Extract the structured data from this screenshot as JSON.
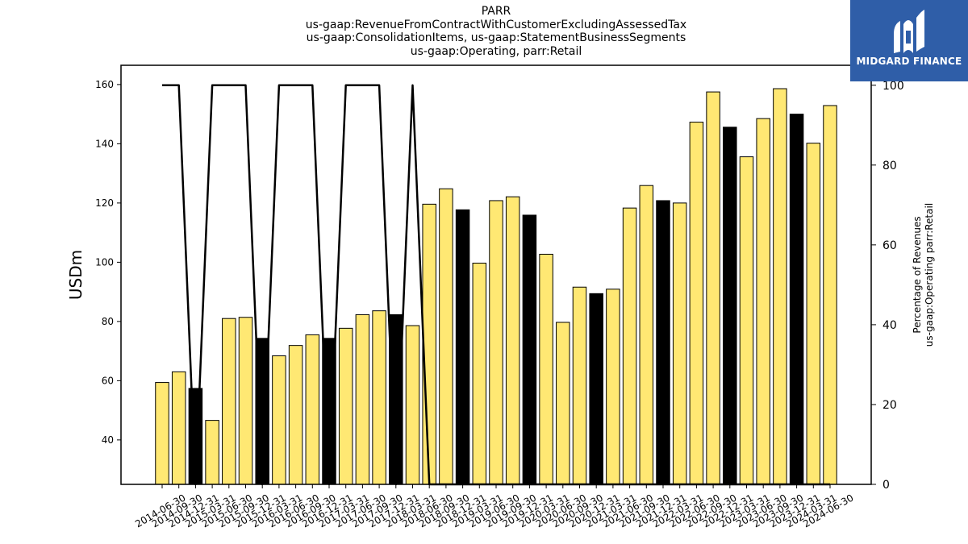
{
  "header": {
    "title_lines": [
      "PARR",
      "us-gaap:RevenueFromContractWithCustomerExcludingAssessedTax",
      "us-gaap:ConsolidationItems, us-gaap:StatementBusinessSegments",
      "us-gaap:Operating, parr:Retail"
    ]
  },
  "logo": {
    "text": "MIDGARD FINANCE",
    "icon": "midgard-logo-icon",
    "background": "#2f5ea8"
  },
  "chart_data": {
    "type": "bar",
    "categories": [
      "2014-06-30",
      "2014-09-30",
      "2014-12-31",
      "2015-03-31",
      "2015-06-30",
      "2015-09-30",
      "2015-12-31",
      "2016-03-31",
      "2016-06-30",
      "2016-09-30",
      "2016-12-31",
      "2017-03-31",
      "2017-06-30",
      "2017-09-30",
      "2017-12-31",
      "2018-03-31",
      "2018-06-30",
      "2018-09-30",
      "2018-12-31",
      "2019-03-31",
      "2019-06-30",
      "2019-09-30",
      "2019-12-31",
      "2020-03-31",
      "2020-06-30",
      "2020-09-30",
      "2020-12-31",
      "2021-03-31",
      "2021-06-30",
      "2021-09-30",
      "2021-12-31",
      "2022-03-31",
      "2022-06-30",
      "2022-09-30",
      "2022-12-31",
      "2023-03-31",
      "2023-06-30",
      "2023-09-30",
      "2023-12-31",
      "2024-03-31",
      "2024-06-30"
    ],
    "series": [
      {
        "axis": "left",
        "kind": "bar",
        "values": [
          59.4,
          63.0,
          57.4,
          46.6,
          81.0,
          81.4,
          74.3,
          68.4,
          71.9,
          75.5,
          74.3,
          77.7,
          82.3,
          83.6,
          82.3,
          78.6,
          119.6,
          124.8,
          117.7,
          99.7,
          120.8,
          122.1,
          115.9,
          102.7,
          79.7,
          91.6,
          89.4,
          90.9,
          118.3,
          125.9,
          120.8,
          120.0,
          147.3,
          157.5,
          145.6,
          135.6,
          148.5,
          158.6,
          150.0,
          140.2,
          152.9
        ],
        "highlight_indices": [
          2,
          6,
          10,
          14,
          18,
          22,
          26,
          30,
          34,
          38
        ]
      },
      {
        "axis": "right",
        "kind": "line",
        "values": [
          100,
          100,
          0,
          100,
          100,
          100,
          0,
          100,
          100,
          100,
          0,
          100,
          100,
          100,
          0,
          100,
          0,
          0,
          0,
          0,
          0,
          0,
          0,
          0,
          0,
          0,
          0,
          0,
          0,
          0,
          0,
          0,
          0,
          0,
          0,
          0,
          0,
          0,
          0,
          0,
          0
        ]
      }
    ],
    "xlabel": "",
    "ylabel": "USDm",
    "y2label_lines": [
      "Percentage of Revenues",
      "us-gaap:Operating parr:Retail"
    ],
    "ylim": [
      25,
      166.5
    ],
    "y2lim": [
      0,
      105
    ],
    "yticks": [
      40,
      60,
      80,
      100,
      120,
      140,
      160
    ],
    "y2ticks": [
      0,
      20,
      40,
      60,
      80,
      100
    ],
    "colors": {
      "bar": "#ffe873",
      "bar_highlight": "#000000",
      "line": "#000000",
      "edge": "#000000"
    },
    "grid": false,
    "legend": "none"
  }
}
